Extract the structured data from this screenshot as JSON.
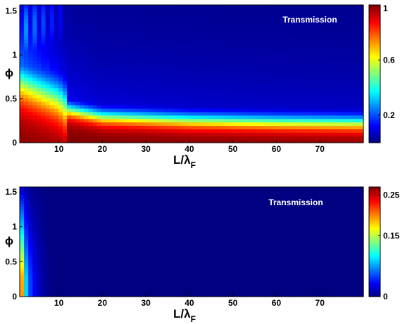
{
  "chart_data": [
    {
      "type": "heatmap",
      "annotation": "Transmission",
      "xlabel_main": "L/λ",
      "xlabel_sub": "F",
      "ylabel": "ϕ",
      "xlim": [
        1,
        80
      ],
      "ylim": [
        0,
        1.57
      ],
      "x_ticks": [
        10,
        20,
        30,
        40,
        50,
        60,
        70
      ],
      "y_ticks": [
        {
          "value": 0,
          "label": "0"
        },
        {
          "value": 0.5,
          "label": "0.5"
        },
        {
          "value": 1,
          "label": "1"
        },
        {
          "value": 1.5,
          "label": "1.5"
        }
      ],
      "colorbar": {
        "min": 0,
        "max": 1,
        "colormap": "jet",
        "ticks": [
          {
            "value": 1,
            "label": "1"
          },
          {
            "value": 0.6,
            "label": "0.6"
          },
          {
            "value": 0.2,
            "label": "0.2"
          }
        ]
      },
      "description_points": {
        "phi_at_half_transmission": [
          {
            "x": 1,
            "phi": 0.7
          },
          {
            "x": 10,
            "phi": 0.5
          },
          {
            "x": 12,
            "phi": 0.38
          },
          {
            "x": 20,
            "phi": 0.3
          },
          {
            "x": 40,
            "phi": 0.26
          },
          {
            "x": 60,
            "phi": 0.24
          },
          {
            "x": 80,
            "phi": 0.23
          }
        ],
        "background_tail": [
          {
            "x": 1,
            "level": 0.3
          },
          {
            "x": 12,
            "level": 0.12
          },
          {
            "x": 20,
            "level": 0.1
          },
          {
            "x": 40,
            "level": 0.09
          },
          {
            "x": 80,
            "level": 0.08
          }
        ]
      }
    },
    {
      "type": "heatmap",
      "annotation": "Transmission",
      "xlabel_main": "L/λ",
      "xlabel_sub": "F",
      "ylabel": "ϕ",
      "xlim": [
        1,
        80
      ],
      "ylim": [
        0,
        1.57
      ],
      "x_ticks": [
        10,
        20,
        30,
        40,
        50,
        60,
        70
      ],
      "y_ticks": [
        {
          "value": 0,
          "label": "0"
        },
        {
          "value": 0.5,
          "label": "0.5"
        },
        {
          "value": 1,
          "label": "1"
        },
        {
          "value": 1.5,
          "label": "1.5"
        }
      ],
      "colorbar": {
        "min": 0,
        "max": 0.27,
        "colormap": "jet",
        "ticks": [
          {
            "value": 0.25,
            "label": "0.25"
          },
          {
            "value": 0.15,
            "label": "0.15"
          },
          {
            "value": 0,
            "label": "0"
          }
        ]
      },
      "description_points": {
        "column_values_at_x1": [
          {
            "phi": 0.0,
            "value": 0.27
          },
          {
            "phi": 0.3,
            "value": 0.26
          },
          {
            "phi": 0.6,
            "value": 0.2
          },
          {
            "phi": 1.0,
            "value": 0.12
          },
          {
            "phi": 1.5,
            "value": 0.04
          }
        ],
        "decay_along_x": [
          {
            "x": 1,
            "value": 0.27
          },
          {
            "x": 2,
            "value": 0.12
          },
          {
            "x": 3,
            "value": 0.06
          },
          {
            "x": 5,
            "value": 0.02
          },
          {
            "x": 8,
            "value": 0.0
          }
        ]
      }
    }
  ]
}
